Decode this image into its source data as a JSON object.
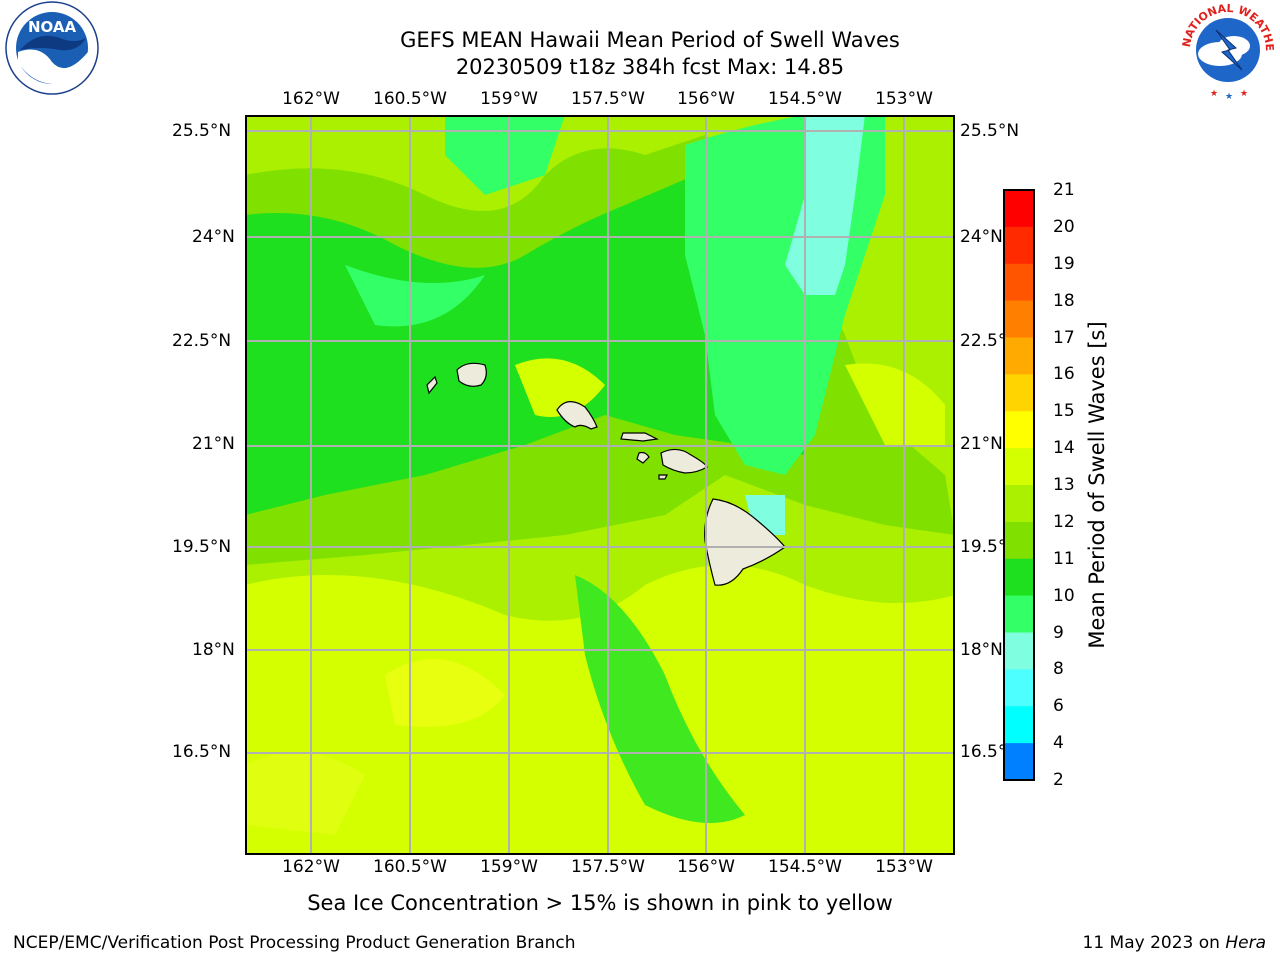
{
  "header": {
    "title": "GEFS MEAN Hawaii Mean Period of Swell Waves",
    "subtitle": "20230509 t18z 384h fcst   Max: 14.85"
  },
  "map": {
    "lon_labels": [
      "162°W",
      "160.5°W",
      "159°W",
      "157.5°W",
      "156°W",
      "154.5°W",
      "153°W"
    ],
    "lat_labels": [
      "25.5°N",
      "24°N",
      "22.5°N",
      "21°N",
      "19.5°N",
      "18°N",
      "16.5°N"
    ],
    "lat_labels_right": [
      "25.5°N",
      "24°N",
      "22.5°N",
      "21°N",
      "19.5°N",
      "18°N",
      "16.5°N"
    ],
    "colors": {
      "background_field": "#aaf000",
      "land": "#ecebdc",
      "grid": "#b0b0b0"
    }
  },
  "colorbar": {
    "title": "Mean Period of Swell Waves [s]",
    "ticks": [
      "21",
      "20",
      "19",
      "18",
      "17",
      "16",
      "15",
      "14",
      "13",
      "12",
      "11",
      "10",
      "9",
      "8",
      "6",
      "4",
      "2"
    ],
    "colors": [
      "#ff0000",
      "#ff2a00",
      "#ff5500",
      "#ff7f00",
      "#ffaa00",
      "#ffd400",
      "#ffff00",
      "#d4ff00",
      "#aaf000",
      "#80e000",
      "#1ee01e",
      "#33ff66",
      "#80ffe0",
      "#4dffff",
      "#00ffff",
      "#0080ff",
      "#0000ff"
    ]
  },
  "note": "Sea Ice Concentration > 15% is shown in pink to yellow",
  "footer": {
    "left": "NCEP/EMC/Verification Post Processing Product Generation Branch",
    "right_prefix": "11 May 2023 on",
    "right_host": "Hera"
  },
  "logos": {
    "noaa_text": "NOAA",
    "nws_text": "NATIONAL WEATHER SERVICE"
  }
}
